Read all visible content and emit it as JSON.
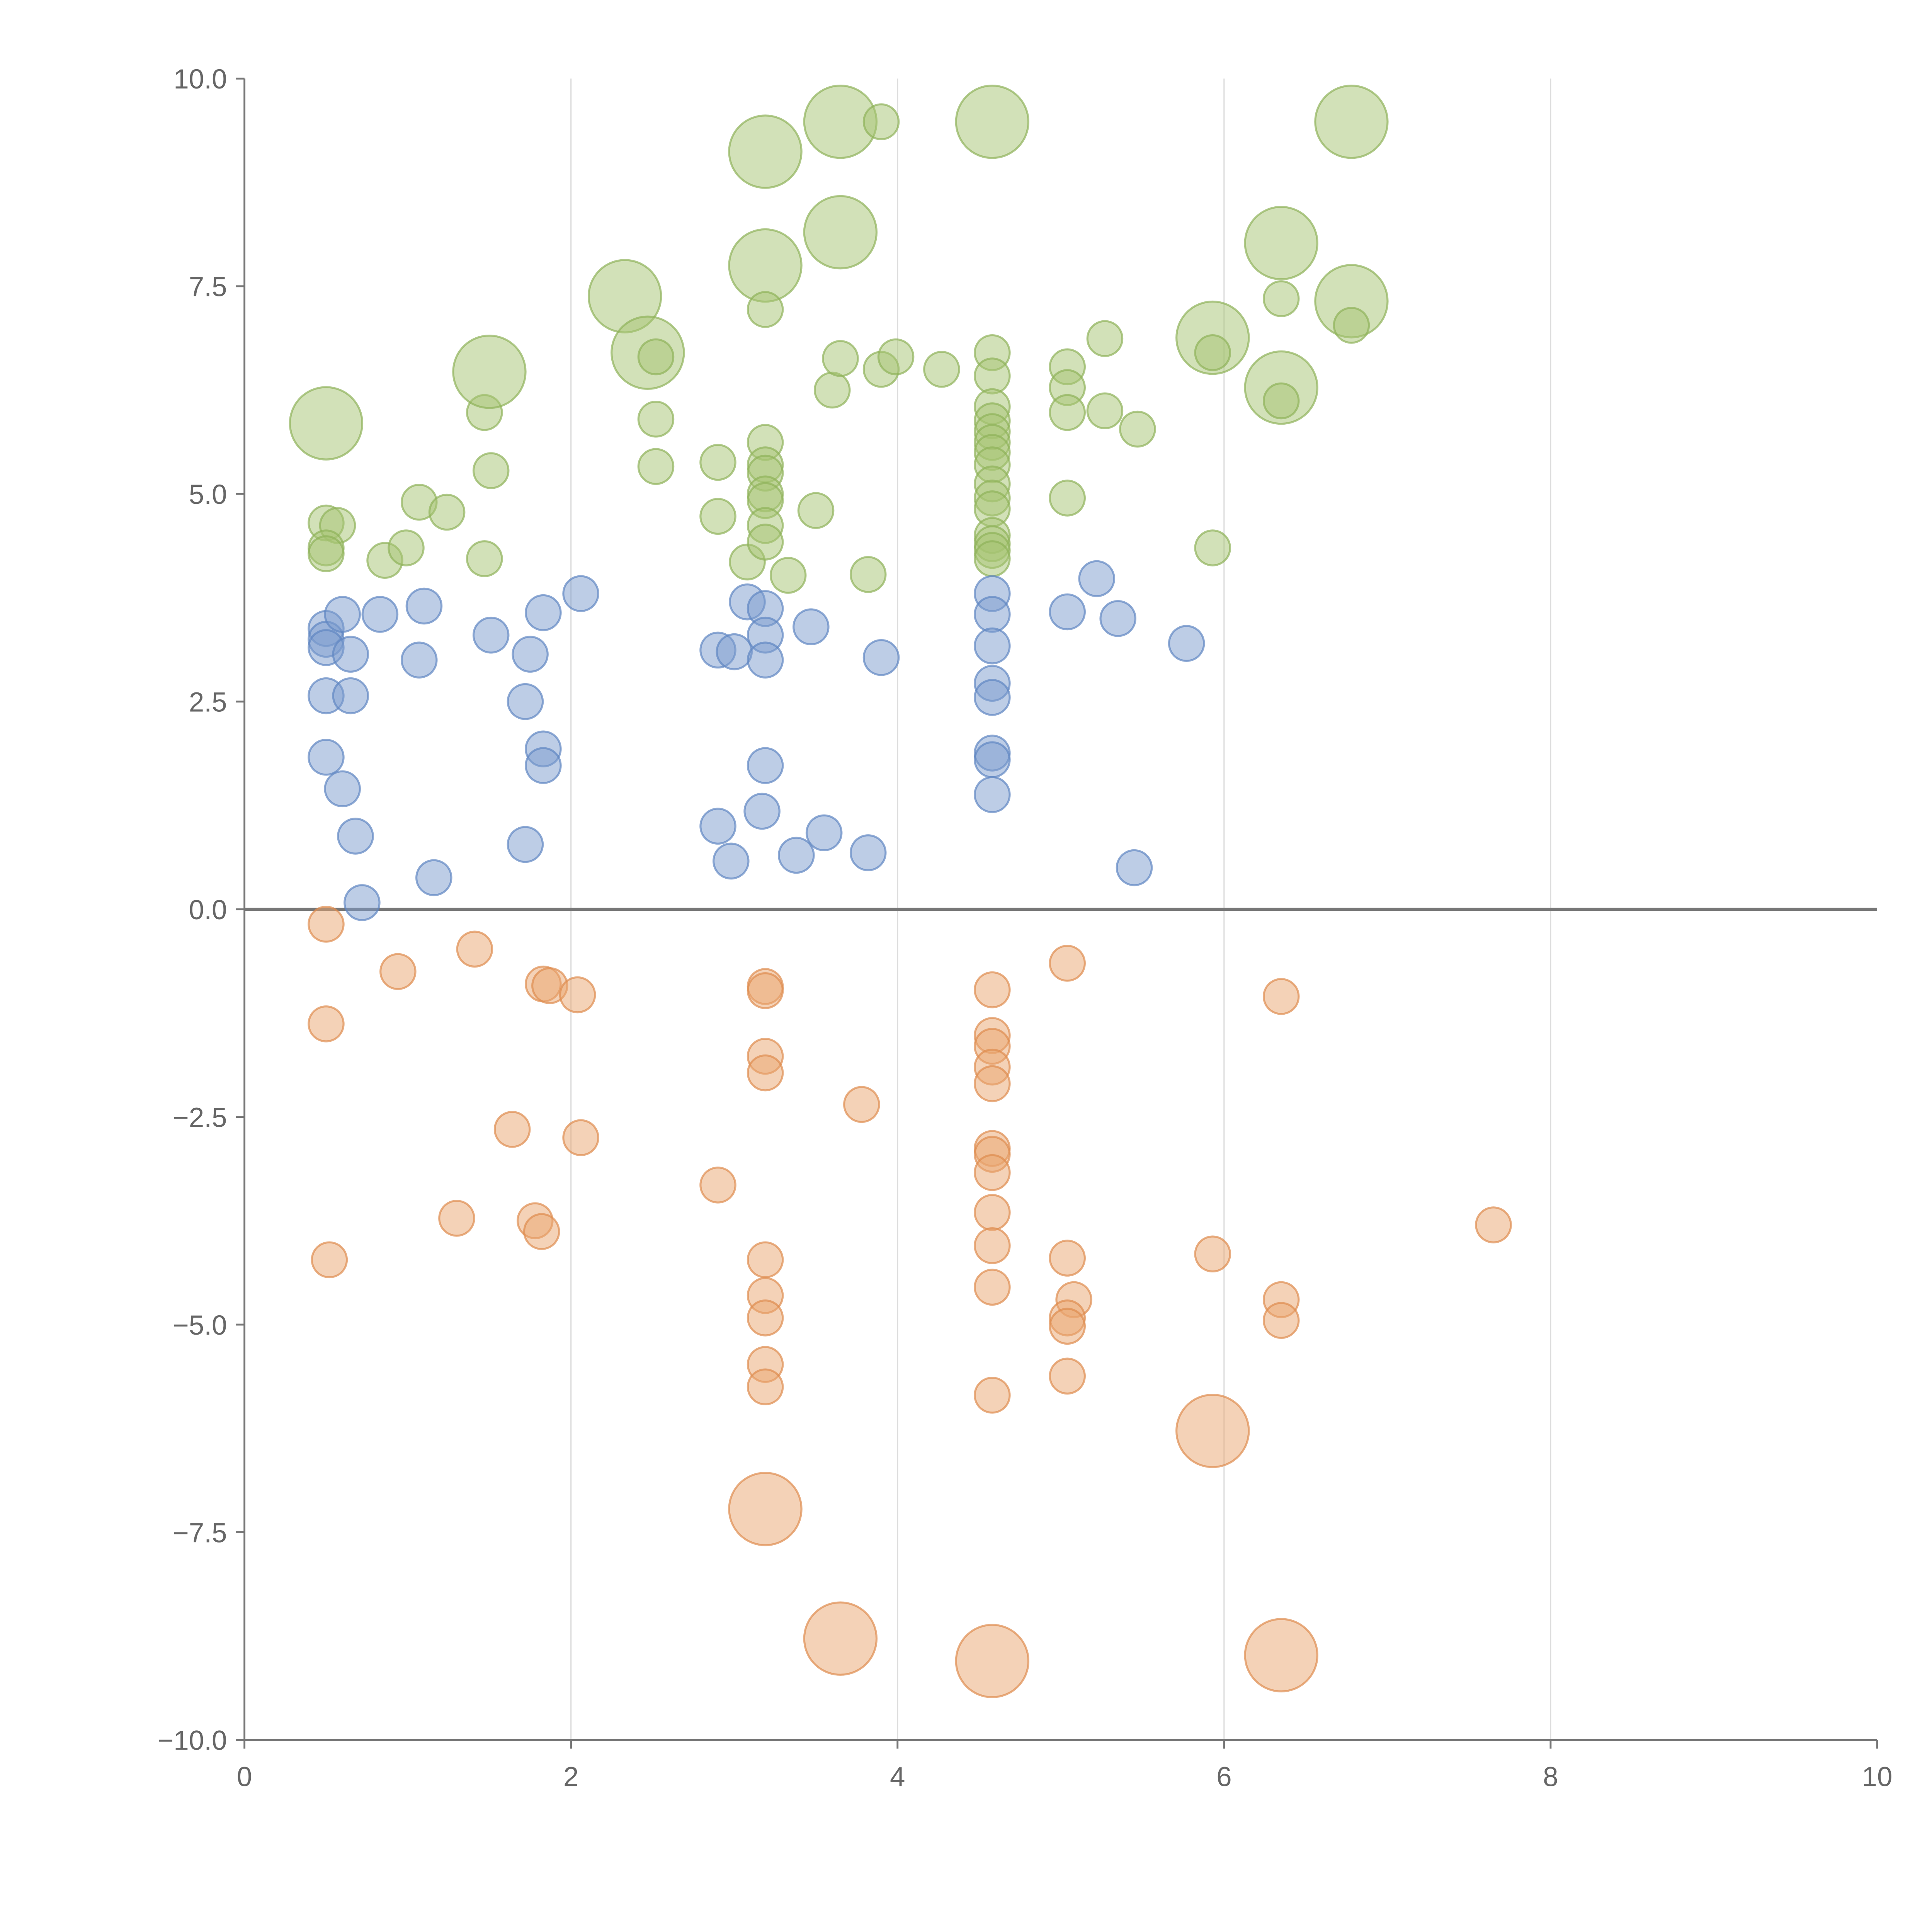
{
  "colors": {
    "positive": "#a6c472",
    "positive_stroke": "#8fb25a",
    "neutral": "#7b9ccd",
    "neutral_stroke": "#5f86c2",
    "negative": "#e9a56f",
    "negative_stroke": "#de8c4f",
    "axis": "#777777",
    "grid": "#dddddd",
    "label_text": "#ffffff"
  },
  "chart_data": {
    "type": "scatter",
    "title": "",
    "xlabel": "",
    "ylabel": "",
    "xlim": [
      0,
      10
    ],
    "ylim": [
      -10,
      10
    ],
    "x_ticks": [
      "0",
      "2",
      "4",
      "6",
      "8",
      "10"
    ],
    "y_ticks": [
      "10.0",
      "7.5",
      "5.0",
      "2.5",
      "0.0",
      "−2.5",
      "−5.0",
      "−7.5",
      "−10.0"
    ],
    "grid": "vertical",
    "zero_line": true,
    "legend": "none",
    "series": [
      {
        "group": "positive",
        "points": [
          {
            "x": 0.5,
            "y": 5.85,
            "r": 3
          },
          {
            "x": 0.5,
            "y": 4.65,
            "r": 1
          },
          {
            "x": 0.57,
            "y": 4.62,
            "r": 1
          },
          {
            "x": 0.5,
            "y": 4.35,
            "r": 1
          },
          {
            "x": 0.5,
            "y": 4.28,
            "r": 1
          },
          {
            "x": 0.86,
            "y": 4.2,
            "r": 1
          },
          {
            "x": 0.99,
            "y": 4.35,
            "r": 1
          },
          {
            "x": 1.07,
            "y": 4.9,
            "r": 1
          },
          {
            "x": 1.24,
            "y": 4.78,
            "r": 1
          },
          {
            "x": 1.47,
            "y": 4.22,
            "r": 1
          },
          {
            "x": 1.47,
            "y": 5.98,
            "r": 1
          },
          {
            "x": 1.5,
            "y": 6.47,
            "r": 3
          },
          {
            "x": 1.51,
            "y": 5.28,
            "r": 1
          },
          {
            "x": 2.33,
            "y": 7.38,
            "r": 3
          },
          {
            "x": 2.47,
            "y": 6.7,
            "r": 3
          },
          {
            "x": 2.52,
            "y": 6.65,
            "r": 1
          },
          {
            "x": 2.52,
            "y": 5.9,
            "r": 1
          },
          {
            "x": 2.52,
            "y": 5.33,
            "r": 1
          },
          {
            "x": 2.9,
            "y": 5.38,
            "r": 1
          },
          {
            "x": 2.9,
            "y": 4.73,
            "r": 1
          },
          {
            "x": 3.08,
            "y": 4.18,
            "r": 1
          },
          {
            "x": 3.19,
            "y": 9.12,
            "r": 3
          },
          {
            "x": 3.19,
            "y": 7.75,
            "r": 3
          },
          {
            "x": 3.19,
            "y": 7.22,
            "r": 1
          },
          {
            "x": 3.19,
            "y": 5.62,
            "r": 1
          },
          {
            "x": 3.19,
            "y": 5.35,
            "r": 1
          },
          {
            "x": 3.19,
            "y": 5.25,
            "r": 1
          },
          {
            "x": 3.19,
            "y": 5.0,
            "r": 1
          },
          {
            "x": 3.19,
            "y": 4.92,
            "r": 1
          },
          {
            "x": 3.19,
            "y": 4.62,
            "r": 1
          },
          {
            "x": 3.19,
            "y": 4.42,
            "r": 1
          },
          {
            "x": 3.33,
            "y": 4.02,
            "r": 1
          },
          {
            "x": 3.5,
            "y": 4.8,
            "r": 1
          },
          {
            "x": 3.6,
            "y": 6.25,
            "r": 1
          },
          {
            "x": 3.65,
            "y": 9.48,
            "r": 3
          },
          {
            "x": 3.65,
            "y": 8.15,
            "r": 3
          },
          {
            "x": 3.65,
            "y": 6.63,
            "r": 1
          },
          {
            "x": 3.82,
            "y": 4.03,
            "r": 1
          },
          {
            "x": 3.9,
            "y": 9.48,
            "r": 1
          },
          {
            "x": 3.9,
            "y": 6.5,
            "r": 1
          },
          {
            "x": 3.99,
            "y": 6.65,
            "r": 1
          },
          {
            "x": 4.27,
            "y": 6.5,
            "r": 1
          },
          {
            "x": 4.58,
            "y": 9.48,
            "r": 3
          },
          {
            "x": 4.58,
            "y": 6.7,
            "r": 1
          },
          {
            "x": 4.58,
            "y": 6.42,
            "r": 1
          },
          {
            "x": 4.58,
            "y": 6.05,
            "r": 1
          },
          {
            "x": 4.58,
            "y": 5.88,
            "r": 1
          },
          {
            "x": 4.58,
            "y": 5.75,
            "r": 1
          },
          {
            "x": 4.58,
            "y": 5.62,
            "r": 1
          },
          {
            "x": 4.58,
            "y": 5.5,
            "r": 1
          },
          {
            "x": 4.58,
            "y": 5.35,
            "r": 1
          },
          {
            "x": 4.58,
            "y": 5.12,
            "r": 1
          },
          {
            "x": 4.58,
            "y": 4.95,
            "r": 1
          },
          {
            "x": 4.58,
            "y": 4.82,
            "r": 1
          },
          {
            "x": 4.58,
            "y": 4.5,
            "r": 1
          },
          {
            "x": 4.58,
            "y": 4.4,
            "r": 1
          },
          {
            "x": 4.58,
            "y": 4.32,
            "r": 1
          },
          {
            "x": 4.58,
            "y": 4.22,
            "r": 1
          },
          {
            "x": 5.04,
            "y": 6.53,
            "r": 1
          },
          {
            "x": 5.04,
            "y": 6.28,
            "r": 1
          },
          {
            "x": 5.04,
            "y": 5.98,
            "r": 1
          },
          {
            "x": 5.04,
            "y": 4.95,
            "r": 1
          },
          {
            "x": 5.27,
            "y": 6.87,
            "r": 1
          },
          {
            "x": 5.27,
            "y": 6.0,
            "r": 1
          },
          {
            "x": 5.47,
            "y": 5.78,
            "r": 1
          },
          {
            "x": 5.93,
            "y": 6.88,
            "r": 3
          },
          {
            "x": 5.93,
            "y": 6.7,
            "r": 1
          },
          {
            "x": 5.93,
            "y": 4.35,
            "r": 1
          },
          {
            "x": 6.35,
            "y": 8.02,
            "r": 3
          },
          {
            "x": 6.35,
            "y": 7.35,
            "r": 1
          },
          {
            "x": 6.35,
            "y": 6.28,
            "r": 3
          },
          {
            "x": 6.35,
            "y": 6.12,
            "r": 1
          },
          {
            "x": 6.78,
            "y": 9.48,
            "r": 3
          },
          {
            "x": 6.78,
            "y": 7.32,
            "r": 3
          },
          {
            "x": 6.78,
            "y": 7.03,
            "r": 1
          }
        ]
      },
      {
        "group": "neutral",
        "points": [
          {
            "x": 0.5,
            "y": 3.38,
            "r": 1
          },
          {
            "x": 0.5,
            "y": 3.25,
            "r": 1
          },
          {
            "x": 0.5,
            "y": 3.15,
            "r": 1
          },
          {
            "x": 0.6,
            "y": 3.55,
            "r": 1
          },
          {
            "x": 0.65,
            "y": 3.07,
            "r": 1
          },
          {
            "x": 0.5,
            "y": 2.57,
            "r": 1
          },
          {
            "x": 0.65,
            "y": 2.57,
            "r": 1
          },
          {
            "x": 0.5,
            "y": 1.83,
            "r": 1
          },
          {
            "x": 0.6,
            "y": 1.45,
            "r": 1
          },
          {
            "x": 0.68,
            "y": 0.88,
            "r": 1
          },
          {
            "x": 0.72,
            "y": 0.08,
            "r": 1
          },
          {
            "x": 0.83,
            "y": 3.55,
            "r": 1
          },
          {
            "x": 1.07,
            "y": 3.0,
            "r": 1
          },
          {
            "x": 1.1,
            "y": 3.65,
            "r": 1
          },
          {
            "x": 1.16,
            "y": 0.38,
            "r": 1
          },
          {
            "x": 1.51,
            "y": 3.3,
            "r": 1
          },
          {
            "x": 1.72,
            "y": 2.5,
            "r": 1
          },
          {
            "x": 1.72,
            "y": 0.78,
            "r": 1
          },
          {
            "x": 1.75,
            "y": 3.07,
            "r": 1
          },
          {
            "x": 1.83,
            "y": 3.57,
            "r": 1
          },
          {
            "x": 1.83,
            "y": 1.93,
            "r": 1
          },
          {
            "x": 1.83,
            "y": 1.73,
            "r": 1
          },
          {
            "x": 2.06,
            "y": 3.8,
            "r": 1
          },
          {
            "x": 2.9,
            "y": 3.12,
            "r": 1
          },
          {
            "x": 2.9,
            "y": 1.0,
            "r": 1
          },
          {
            "x": 2.98,
            "y": 0.58,
            "r": 1
          },
          {
            "x": 3.0,
            "y": 3.1,
            "r": 1
          },
          {
            "x": 3.08,
            "y": 3.7,
            "r": 1
          },
          {
            "x": 3.19,
            "y": 3.62,
            "r": 1
          },
          {
            "x": 3.19,
            "y": 3.3,
            "r": 1
          },
          {
            "x": 3.19,
            "y": 3.0,
            "r": 1
          },
          {
            "x": 3.19,
            "y": 1.73,
            "r": 1
          },
          {
            "x": 3.17,
            "y": 1.18,
            "r": 1
          },
          {
            "x": 3.38,
            "y": 0.65,
            "r": 1
          },
          {
            "x": 3.47,
            "y": 3.4,
            "r": 1
          },
          {
            "x": 3.55,
            "y": 0.92,
            "r": 1
          },
          {
            "x": 3.82,
            "y": 0.68,
            "r": 1
          },
          {
            "x": 3.9,
            "y": 3.03,
            "r": 1
          },
          {
            "x": 4.58,
            "y": 3.8,
            "r": 1
          },
          {
            "x": 4.58,
            "y": 3.55,
            "r": 1
          },
          {
            "x": 4.58,
            "y": 3.17,
            "r": 1
          },
          {
            "x": 4.58,
            "y": 2.72,
            "r": 1
          },
          {
            "x": 4.58,
            "y": 2.55,
            "r": 1
          },
          {
            "x": 4.58,
            "y": 1.88,
            "r": 1
          },
          {
            "x": 4.58,
            "y": 1.8,
            "r": 1
          },
          {
            "x": 4.58,
            "y": 1.38,
            "r": 1
          },
          {
            "x": 5.04,
            "y": 3.58,
            "r": 1
          },
          {
            "x": 5.22,
            "y": 3.98,
            "r": 1
          },
          {
            "x": 5.35,
            "y": 3.5,
            "r": 1
          },
          {
            "x": 5.45,
            "y": 0.5,
            "r": 1
          },
          {
            "x": 5.77,
            "y": 3.2,
            "r": 1
          }
        ]
      },
      {
        "group": "negative",
        "points": [
          {
            "x": 0.5,
            "y": -0.18,
            "r": 1
          },
          {
            "x": 0.5,
            "y": -1.38,
            "r": 1
          },
          {
            "x": 0.52,
            "y": -4.22,
            "r": 1
          },
          {
            "x": 0.94,
            "y": -0.75,
            "r": 1
          },
          {
            "x": 1.3,
            "y": -3.72,
            "r": 1
          },
          {
            "x": 1.41,
            "y": -0.48,
            "r": 1
          },
          {
            "x": 1.64,
            "y": -2.65,
            "r": 1
          },
          {
            "x": 1.78,
            "y": -3.75,
            "r": 1
          },
          {
            "x": 1.82,
            "y": -3.88,
            "r": 1
          },
          {
            "x": 1.83,
            "y": -0.9,
            "r": 1
          },
          {
            "x": 1.87,
            "y": -0.92,
            "r": 1
          },
          {
            "x": 2.04,
            "y": -1.03,
            "r": 1
          },
          {
            "x": 2.06,
            "y": -2.75,
            "r": 1
          },
          {
            "x": 2.9,
            "y": -3.32,
            "r": 1
          },
          {
            "x": 3.19,
            "y": -0.93,
            "r": 1
          },
          {
            "x": 3.19,
            "y": -0.98,
            "r": 1
          },
          {
            "x": 3.19,
            "y": -1.77,
            "r": 1
          },
          {
            "x": 3.19,
            "y": -1.97,
            "r": 1
          },
          {
            "x": 3.19,
            "y": -4.22,
            "r": 1
          },
          {
            "x": 3.19,
            "y": -4.65,
            "r": 1
          },
          {
            "x": 3.19,
            "y": -4.92,
            "r": 1
          },
          {
            "x": 3.19,
            "y": -5.48,
            "r": 1
          },
          {
            "x": 3.19,
            "y": -5.75,
            "r": 1
          },
          {
            "x": 3.19,
            "y": -7.22,
            "r": 3
          },
          {
            "x": 3.65,
            "y": -8.78,
            "r": 3
          },
          {
            "x": 3.78,
            "y": -2.35,
            "r": 1
          },
          {
            "x": 4.58,
            "y": -0.97,
            "r": 1
          },
          {
            "x": 4.58,
            "y": -1.52,
            "r": 1
          },
          {
            "x": 4.58,
            "y": -1.65,
            "r": 1
          },
          {
            "x": 4.58,
            "y": -1.9,
            "r": 1
          },
          {
            "x": 4.58,
            "y": -2.1,
            "r": 1
          },
          {
            "x": 4.58,
            "y": -2.88,
            "r": 1
          },
          {
            "x": 4.58,
            "y": -2.95,
            "r": 1
          },
          {
            "x": 4.58,
            "y": -3.17,
            "r": 1
          },
          {
            "x": 4.58,
            "y": -3.65,
            "r": 1
          },
          {
            "x": 4.58,
            "y": -4.05,
            "r": 1
          },
          {
            "x": 4.58,
            "y": -4.55,
            "r": 1
          },
          {
            "x": 4.58,
            "y": -5.85,
            "r": 1
          },
          {
            "x": 4.58,
            "y": -9.05,
            "r": 3
          },
          {
            "x": 5.04,
            "y": -0.65,
            "r": 1
          },
          {
            "x": 5.04,
            "y": -4.2,
            "r": 1
          },
          {
            "x": 5.08,
            "y": -4.7,
            "r": 1
          },
          {
            "x": 5.04,
            "y": -4.92,
            "r": 1
          },
          {
            "x": 5.04,
            "y": -5.02,
            "r": 1
          },
          {
            "x": 5.04,
            "y": -5.62,
            "r": 1
          },
          {
            "x": 5.93,
            "y": -4.15,
            "r": 1
          },
          {
            "x": 5.93,
            "y": -6.28,
            "r": 3
          },
          {
            "x": 6.35,
            "y": -1.05,
            "r": 1
          },
          {
            "x": 6.35,
            "y": -4.7,
            "r": 1
          },
          {
            "x": 6.35,
            "y": -4.95,
            "r": 1
          },
          {
            "x": 6.35,
            "y": -8.98,
            "r": 3
          },
          {
            "x": 7.65,
            "y": -3.8,
            "r": 1
          }
        ]
      }
    ]
  }
}
